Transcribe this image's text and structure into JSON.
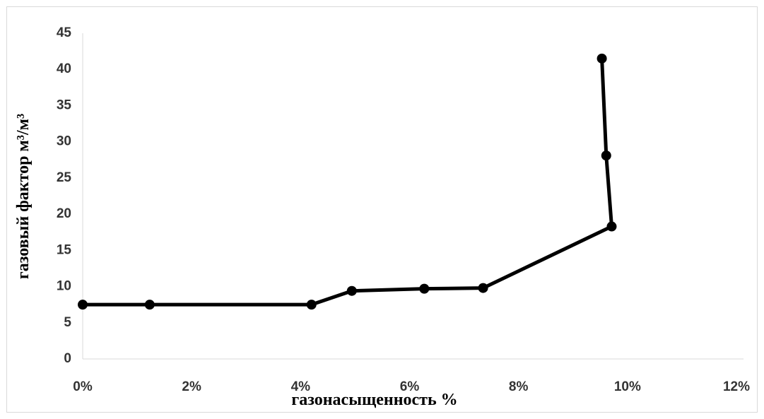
{
  "chart_data": {
    "type": "line",
    "x_label": "газонасыщенность  %",
    "y_label": "газовый фактор м³/м³",
    "series": [
      {
        "name": null,
        "color": "#000000",
        "x": [
          0,
          1.23,
          4.2,
          4.94,
          6.27,
          7.35,
          9.71,
          9.61,
          9.53
        ],
        "values": [
          7.5,
          7.5,
          7.5,
          9.4,
          9.7,
          9.8,
          18.3,
          28.1,
          41.5
        ]
      }
    ],
    "xlim": [
      0,
      12
    ],
    "xticks": [
      {
        "value": 0,
        "label": "0%"
      },
      {
        "value": 2,
        "label": "2%"
      },
      {
        "value": 4,
        "label": "4%"
      },
      {
        "value": 6,
        "label": "6%"
      },
      {
        "value": 8,
        "label": "8%"
      },
      {
        "value": 10,
        "label": "10%"
      },
      {
        "value": 12,
        "label": "12%"
      }
    ],
    "ylim": [
      0,
      45
    ],
    "yticks": [
      0,
      5,
      10,
      15,
      20,
      25,
      30,
      35,
      40,
      45
    ],
    "grid": false
  }
}
